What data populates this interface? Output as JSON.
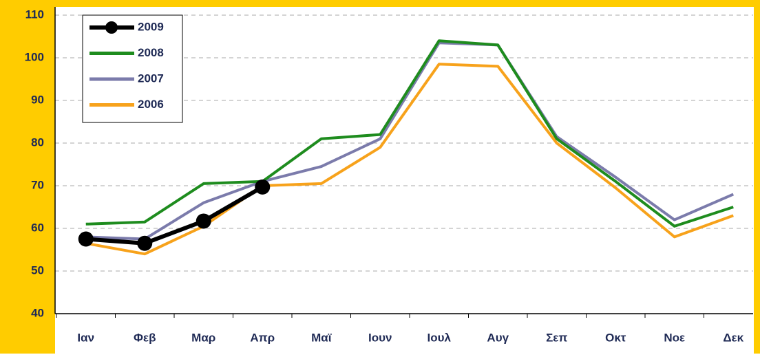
{
  "chart_data": {
    "type": "line",
    "categories": [
      "Ιαν",
      "Φεβ",
      "Μαρ",
      "Απρ",
      "Μαϊ",
      "Ιουν",
      "Ιουλ",
      "Αυγ",
      "Σεπ",
      "Οκτ",
      "Νοε",
      "Δεκ"
    ],
    "series": [
      {
        "name": "2009",
        "color": "#000000",
        "markers": true,
        "values": [
          57.5,
          56.5,
          61.7,
          69.7,
          null,
          null,
          null,
          null,
          null,
          null,
          null,
          null
        ]
      },
      {
        "name": "2008",
        "color": "#1e8c1e",
        "values": [
          61,
          61.5,
          70.5,
          71,
          81,
          82,
          104,
          103,
          81,
          71,
          60.5,
          65
        ]
      },
      {
        "name": "2007",
        "color": "#7b7bab",
        "values": [
          58,
          57.5,
          66,
          71,
          74.5,
          81,
          103.5,
          103,
          81.5,
          72,
          62,
          68
        ]
      },
      {
        "name": "2006",
        "color": "#f7a21b",
        "values": [
          56.5,
          54,
          60.5,
          70,
          70.5,
          79,
          98.5,
          98,
          80,
          69.5,
          58,
          63
        ]
      }
    ],
    "ylim": [
      40,
      110
    ],
    "yticks": [
      40,
      50,
      60,
      70,
      80,
      90,
      100,
      110
    ],
    "grid": true,
    "legend": "upper left"
  }
}
